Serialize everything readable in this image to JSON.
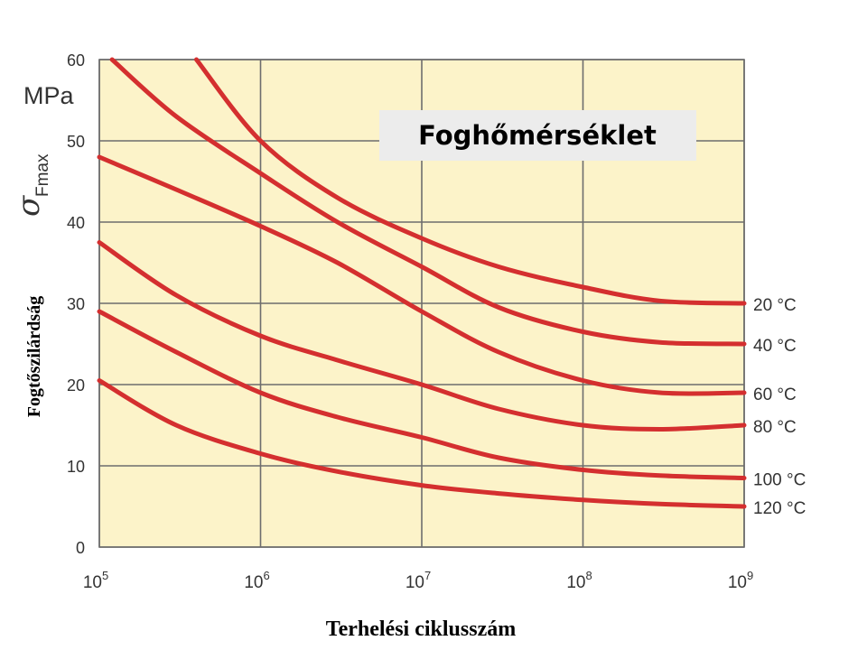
{
  "chart_data": {
    "type": "line",
    "title": "Foghőmérséklet",
    "xlabel": "Terhelési ciklusszám",
    "ylabel": "Fogtőszilárdság",
    "y_symbol": "σ",
    "y_symbol_subscript": "Fmax",
    "y_unit": "MPa",
    "x_scale": "log",
    "x_base": "10",
    "x_ticks": [
      {
        "value": 100000,
        "exp": "5"
      },
      {
        "value": 1000000,
        "exp": "6"
      },
      {
        "value": 10000000,
        "exp": "7"
      },
      {
        "value": 100000000,
        "exp": "8"
      },
      {
        "value": 1000000000,
        "exp": "9"
      }
    ],
    "y_ticks": [
      "0",
      "10",
      "20",
      "30",
      "40",
      "50",
      "60"
    ],
    "xlim": [
      100000,
      1000000000
    ],
    "ylim": [
      0,
      60
    ],
    "grid": true,
    "colors": {
      "plot_bg": "#fcf3c9",
      "grid": "#6d6d6d",
      "curve": "#d42f2f",
      "title_bg": "#ececec"
    },
    "series": [
      {
        "name": "20 °C",
        "x": [
          400000,
          1000000,
          3000000,
          10000000,
          30000000,
          100000000,
          300000000,
          1000000000
        ],
        "y": [
          60,
          50.0,
          43.0,
          38.0,
          34.5,
          32.0,
          30.3,
          30.0
        ]
      },
      {
        "name": "40 °C",
        "x": [
          120000,
          300000,
          1000000,
          3000000,
          10000000,
          30000000,
          100000000,
          300000000,
          1000000000
        ],
        "y": [
          60,
          53.0,
          46.0,
          40.0,
          34.5,
          29.5,
          26.5,
          25.2,
          25.0
        ]
      },
      {
        "name": "60 °C",
        "x": [
          100000,
          300000,
          1000000,
          3000000,
          10000000,
          30000000,
          100000000,
          300000000,
          1000000000
        ],
        "y": [
          48.0,
          44.0,
          39.5,
          35.0,
          29.0,
          24.0,
          20.5,
          19.0,
          19.0
        ]
      },
      {
        "name": "80 °C",
        "x": [
          100000,
          300000,
          1000000,
          3000000,
          10000000,
          30000000,
          100000000,
          300000000,
          1000000000
        ],
        "y": [
          37.5,
          31.0,
          26.0,
          23.0,
          20.0,
          17.0,
          15.0,
          14.5,
          15.0
        ]
      },
      {
        "name": "100 °C",
        "x": [
          100000,
          300000,
          1000000,
          3000000,
          10000000,
          30000000,
          100000000,
          300000000,
          1000000000
        ],
        "y": [
          29.0,
          24.0,
          19.0,
          16.0,
          13.5,
          11.0,
          9.5,
          8.8,
          8.5
        ]
      },
      {
        "name": "120 °C",
        "x": [
          100000,
          300000,
          1000000,
          3000000,
          10000000,
          30000000,
          100000000,
          300000000,
          1000000000
        ],
        "y": [
          20.5,
          15.0,
          11.5,
          9.3,
          7.6,
          6.6,
          5.8,
          5.3,
          5.0
        ]
      }
    ]
  }
}
